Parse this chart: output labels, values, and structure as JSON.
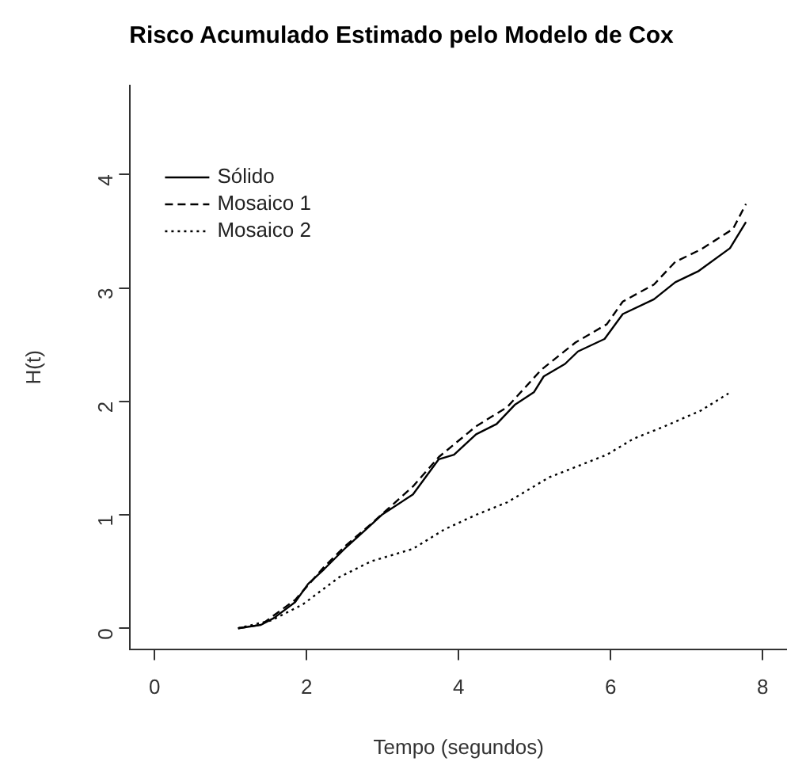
{
  "chart_data": {
    "type": "line",
    "title": "Risco Acumulado Estimado pelo Modelo de Cox",
    "xlabel": "Tempo (segundos)",
    "ylabel": "H(t)",
    "xlim": [
      -0.32,
      8.32
    ],
    "ylim": [
      -0.184,
      4.784
    ],
    "xticks": [
      0,
      2,
      4,
      6,
      8
    ],
    "yticks": [
      0,
      1,
      2,
      3,
      4
    ],
    "grid": false,
    "legend": "top left",
    "marker": "none",
    "series": [
      {
        "name": "Sólido",
        "color": "#000000",
        "line_style": "solid",
        "x": [
          1.1,
          1.4,
          1.57,
          1.85,
          2.02,
          2.23,
          2.5,
          2.78,
          2.99,
          3.4,
          3.74,
          3.94,
          4.23,
          4.5,
          4.74,
          4.99,
          5.12,
          5.4,
          5.57,
          5.92,
          6.16,
          6.57,
          6.85,
          7.16,
          7.57,
          7.78
        ],
        "values": [
          0,
          0.03,
          0.09,
          0.23,
          0.39,
          0.52,
          0.7,
          0.87,
          1.0,
          1.18,
          1.49,
          1.53,
          1.71,
          1.8,
          1.97,
          2.08,
          2.22,
          2.33,
          2.44,
          2.55,
          2.77,
          2.9,
          3.05,
          3.15,
          3.35,
          3.58
        ]
      },
      {
        "name": "Mosaico 1",
        "color": "#000000",
        "line_style": "dashed",
        "x": [
          1.1,
          1.4,
          1.85,
          2.23,
          2.5,
          2.85,
          3.4,
          3.74,
          4.23,
          4.64,
          5.09,
          5.54,
          5.95,
          6.16,
          6.57,
          6.85,
          7.19,
          7.61,
          7.78
        ],
        "values": [
          0,
          0.03,
          0.25,
          0.54,
          0.72,
          0.92,
          1.25,
          1.51,
          1.78,
          1.95,
          2.28,
          2.52,
          2.68,
          2.88,
          3.03,
          3.23,
          3.34,
          3.52,
          3.74
        ]
      },
      {
        "name": "Mosaico 2",
        "color": "#000000",
        "line_style": "dotted",
        "x": [
          1.1,
          1.54,
          1.95,
          2.43,
          2.85,
          3.4,
          3.81,
          4.23,
          4.64,
          5.19,
          5.61,
          5.95,
          6.3,
          6.71,
          7.19,
          7.55
        ],
        "values": [
          0,
          0.07,
          0.21,
          0.45,
          0.59,
          0.7,
          0.87,
          1.0,
          1.11,
          1.33,
          1.44,
          1.53,
          1.67,
          1.78,
          1.92,
          2.07
        ]
      }
    ]
  }
}
